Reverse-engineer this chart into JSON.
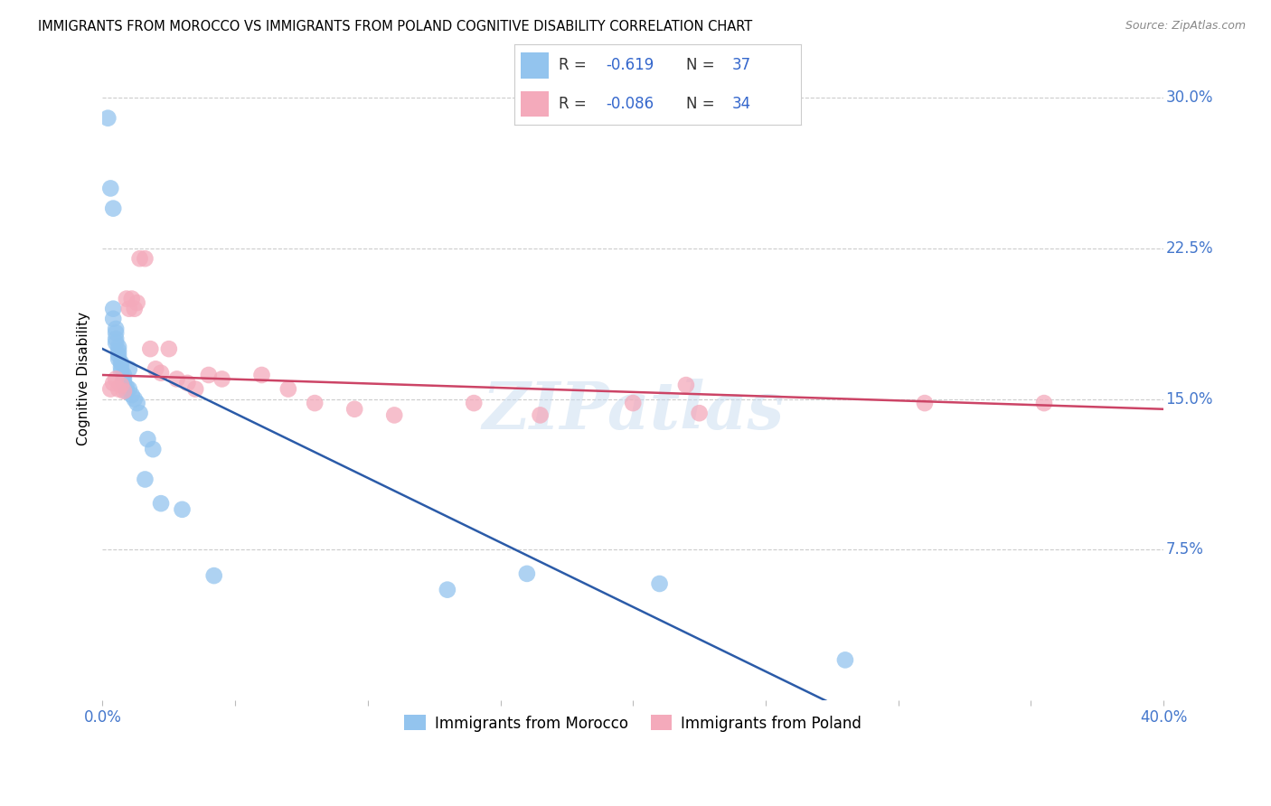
{
  "title": "IMMIGRANTS FROM MOROCCO VS IMMIGRANTS FROM POLAND COGNITIVE DISABILITY CORRELATION CHART",
  "source": "Source: ZipAtlas.com",
  "ylabel": "Cognitive Disability",
  "color_morocco": "#93C4EE",
  "color_poland": "#F4AABB",
  "color_line_morocco": "#2B5BA8",
  "color_line_poland": "#CC4466",
  "watermark": "ZIPatlas",
  "xlim": [
    0.0,
    0.4
  ],
  "ylim": [
    0.0,
    0.32
  ],
  "yticks": [
    0.075,
    0.15,
    0.225,
    0.3
  ],
  "ytick_labels": [
    "7.5%",
    "15.0%",
    "22.5%",
    "30.0%"
  ],
  "morocco_x": [
    0.002,
    0.003,
    0.004,
    0.004,
    0.004,
    0.005,
    0.005,
    0.005,
    0.005,
    0.006,
    0.006,
    0.006,
    0.006,
    0.007,
    0.007,
    0.007,
    0.008,
    0.008,
    0.008,
    0.009,
    0.009,
    0.01,
    0.01,
    0.011,
    0.012,
    0.013,
    0.014,
    0.016,
    0.017,
    0.019,
    0.022,
    0.03,
    0.042,
    0.13,
    0.16,
    0.21,
    0.28
  ],
  "morocco_y": [
    0.29,
    0.255,
    0.245,
    0.195,
    0.19,
    0.185,
    0.183,
    0.18,
    0.178,
    0.176,
    0.174,
    0.172,
    0.17,
    0.168,
    0.166,
    0.164,
    0.162,
    0.16,
    0.158,
    0.156,
    0.154,
    0.165,
    0.155,
    0.152,
    0.15,
    0.148,
    0.143,
    0.11,
    0.13,
    0.125,
    0.098,
    0.095,
    0.062,
    0.055,
    0.063,
    0.058,
    0.02
  ],
  "poland_x": [
    0.003,
    0.004,
    0.005,
    0.006,
    0.007,
    0.008,
    0.009,
    0.01,
    0.011,
    0.012,
    0.013,
    0.014,
    0.016,
    0.018,
    0.02,
    0.022,
    0.025,
    0.028,
    0.032,
    0.035,
    0.04,
    0.045,
    0.06,
    0.07,
    0.08,
    0.095,
    0.11,
    0.14,
    0.165,
    0.2,
    0.22,
    0.225,
    0.31,
    0.355
  ],
  "poland_y": [
    0.155,
    0.158,
    0.16,
    0.155,
    0.157,
    0.154,
    0.2,
    0.195,
    0.2,
    0.195,
    0.198,
    0.22,
    0.22,
    0.175,
    0.165,
    0.163,
    0.175,
    0.16,
    0.158,
    0.155,
    0.162,
    0.16,
    0.162,
    0.155,
    0.148,
    0.145,
    0.142,
    0.148,
    0.142,
    0.148,
    0.157,
    0.143,
    0.148,
    0.148
  ],
  "morocco_line_x0": 0.0,
  "morocco_line_y0": 0.175,
  "morocco_line_x1": 0.28,
  "morocco_line_y1": -0.005,
  "poland_line_x0": 0.0,
  "poland_line_y0": 0.162,
  "poland_line_x1": 0.4,
  "poland_line_y1": 0.145
}
